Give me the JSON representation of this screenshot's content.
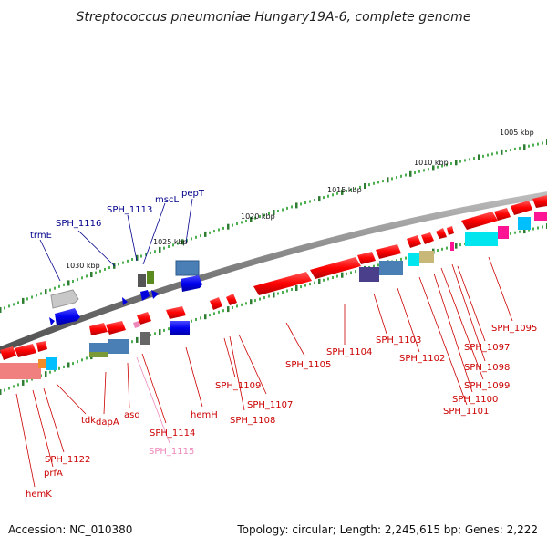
{
  "title": "Streptococcus pneumoniae Hungary19A-6, complete genome",
  "footer": {
    "accession": "Accession: NC_010380",
    "topology": "Topology: circular; Length: 2,245,615 bp; Genes: 2,222"
  },
  "ticks": [
    "1005 kbp",
    "1010 kbp",
    "1015 kbp",
    "1020 kbp",
    "1025 kbp",
    "1030 kbp"
  ],
  "genes_forward": [
    {
      "name": "trmE",
      "color": "#00008b"
    },
    {
      "name": "SPH_1116",
      "color": "#00008b"
    },
    {
      "name": "SPH_1113",
      "color": "#00008b"
    },
    {
      "name": "mscL",
      "color": "#00008b"
    },
    {
      "name": "pepT",
      "color": "#00008b"
    }
  ],
  "genes_reverse": [
    {
      "name": "hemK",
      "color": "#cc0000"
    },
    {
      "name": "prfA",
      "color": "#cc0000"
    },
    {
      "name": "SPH_1122",
      "color": "#cc0000"
    },
    {
      "name": "tdk",
      "color": "#cc0000"
    },
    {
      "name": "dapA",
      "color": "#cc0000"
    },
    {
      "name": "asd",
      "color": "#cc0000"
    },
    {
      "name": "SPH_1114",
      "color": "#cc0000"
    },
    {
      "name": "SPH_1115",
      "color": "#ee88bb"
    },
    {
      "name": "hemH",
      "color": "#cc0000"
    },
    {
      "name": "SPH_1109",
      "color": "#cc0000"
    },
    {
      "name": "SPH_1108",
      "color": "#cc0000"
    },
    {
      "name": "SPH_1107",
      "color": "#cc0000"
    },
    {
      "name": "SPH_1105",
      "color": "#cc0000"
    },
    {
      "name": "SPH_1104",
      "color": "#cc0000"
    },
    {
      "name": "SPH_1103",
      "color": "#cc0000"
    },
    {
      "name": "SPH_1102",
      "color": "#cc0000"
    },
    {
      "name": "SPH_1101",
      "color": "#cc0000"
    },
    {
      "name": "SPH_1100",
      "color": "#cc0000"
    },
    {
      "name": "SPH_1099",
      "color": "#cc0000"
    },
    {
      "name": "SPH_1098",
      "color": "#cc0000"
    },
    {
      "name": "SPH_1097",
      "color": "#cc0000"
    },
    {
      "name": "SPH_1095",
      "color": "#cc0000"
    }
  ]
}
